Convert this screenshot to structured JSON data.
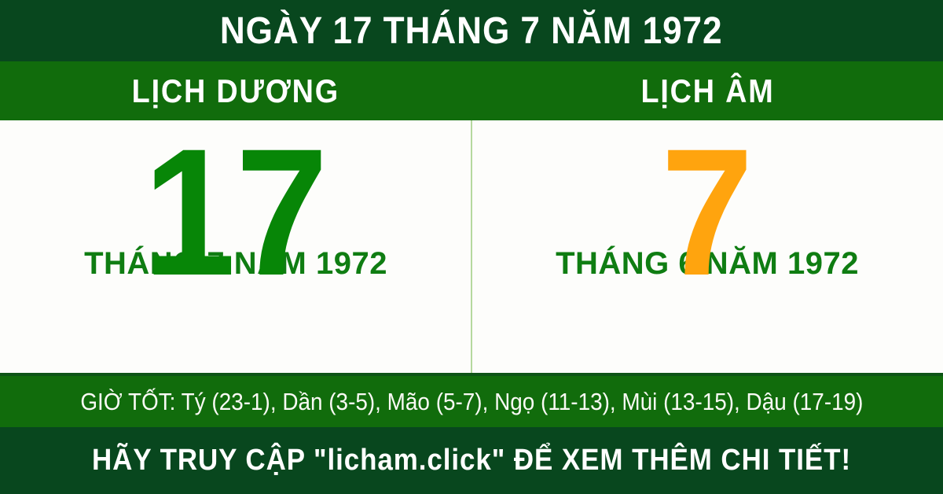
{
  "header": {
    "title": "NGÀY 17 THÁNG 7 NĂM 1972"
  },
  "columns": {
    "solar": {
      "label": "LỊCH DƯƠNG",
      "day": "17",
      "month_year": "THÁNG 7 NĂM 1972"
    },
    "lunar": {
      "label": "LỊCH ÂM",
      "day": "7",
      "month_year": "THÁNG 6 NĂM 1972"
    }
  },
  "good_hours": {
    "text": "GIỜ TỐT: Tý (23-1), Dần (3-5), Mão (5-7), Ngọ (11-13), Mùi (13-15), Dậu (17-19)"
  },
  "footer": {
    "text": "HÃY TRUY CẬP \"licham.click\" ĐỂ XEM THÊM CHI TIẾT!"
  },
  "colors": {
    "dark_green": "#08471e",
    "bar_green": "#116c0c",
    "solar_day_green": "#078607",
    "lunar_day_orange": "#ffa40e",
    "month_text_green": "#0f7d12",
    "divider_light_green": "#b5d89e",
    "panel_background": "#fdfdfb",
    "text_white": "#ffffff"
  }
}
